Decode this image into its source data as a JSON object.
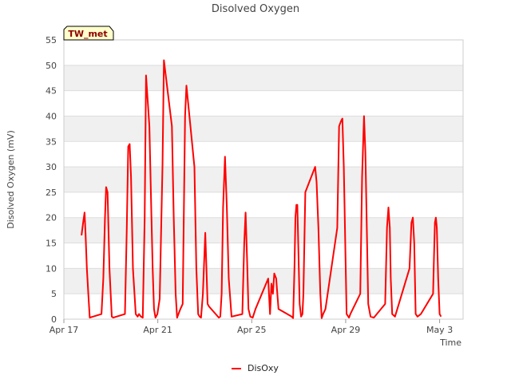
{
  "chart_data": {
    "type": "line",
    "title": "Disolved Oxygen",
    "xlabel": "Time",
    "ylabel": "Disolved Oxygen (mV)",
    "station_label": "TW_met",
    "xlim": [
      0,
      17
    ],
    "ylim": [
      0,
      55
    ],
    "x_unit": "days since Apr 17",
    "x_ticks": [
      {
        "value": 0,
        "label": "Apr 17"
      },
      {
        "value": 4,
        "label": "Apr 21"
      },
      {
        "value": 8,
        "label": "Apr 25"
      },
      {
        "value": 12,
        "label": "Apr 29"
      },
      {
        "value": 16,
        "label": "May 3"
      }
    ],
    "y_ticks": [
      0,
      5,
      10,
      15,
      20,
      25,
      30,
      35,
      40,
      45,
      50,
      55
    ],
    "colors": {
      "series": "#ff0000",
      "band": "#f0f0f0",
      "grid": "#dddddd",
      "badge_fill": "#ffffcc"
    },
    "series": [
      {
        "name": "DisOxy",
        "x": [
          0.75,
          0.82,
          0.88,
          0.92,
          0.98,
          1.04,
          1.1,
          1.6,
          1.68,
          1.75,
          1.8,
          1.86,
          1.94,
          2.04,
          2.1,
          2.6,
          2.68,
          2.74,
          2.8,
          2.86,
          2.94,
          3.06,
          3.14,
          3.2,
          3.28,
          3.36,
          3.44,
          3.5,
          3.64,
          3.72,
          3.78,
          3.84,
          3.9,
          3.98,
          4.08,
          4.2,
          4.26,
          4.6,
          4.68,
          4.76,
          4.82,
          4.88,
          4.96,
          5.06,
          5.16,
          5.22,
          5.56,
          5.64,
          5.72,
          5.78,
          5.84,
          5.92,
          6.02,
          6.12,
          6.18,
          6.6,
          6.66,
          6.72,
          6.78,
          6.86,
          6.94,
          7.02,
          7.14,
          7.6,
          7.68,
          7.74,
          7.8,
          7.86,
          7.94,
          8.04,
          8.16,
          8.7,
          8.78,
          8.84,
          8.9,
          8.96,
          9.04,
          9.14,
          9.7,
          9.76,
          9.82,
          9.86,
          9.9,
          9.94,
          9.98,
          10.04,
          10.1,
          10.16,
          10.2,
          10.28,
          10.7,
          10.76,
          10.84,
          10.92,
          10.98,
          11.04,
          11.14,
          11.64,
          11.72,
          11.8,
          11.86,
          11.92,
          11.98,
          12.04,
          12.14,
          12.2,
          12.62,
          12.7,
          12.78,
          12.84,
          12.9,
          12.96,
          13.06,
          13.2,
          13.68,
          13.76,
          13.82,
          13.88,
          13.92,
          13.98,
          14.1,
          14.2,
          14.72,
          14.8,
          14.86,
          14.92,
          14.98,
          15.06,
          15.2,
          15.72,
          15.76,
          15.8,
          15.84,
          15.88,
          15.94,
          16.0,
          16.06
        ],
        "y": [
          16.5,
          19,
          21,
          17,
          10,
          5,
          0.3,
          1,
          8,
          20,
          26,
          25,
          10,
          0.5,
          0.3,
          1,
          18,
          34,
          34.5,
          28,
          10,
          1,
          0.5,
          1,
          0.5,
          0.3,
          20,
          48,
          38,
          22,
          10,
          2,
          0.3,
          1,
          4,
          30,
          51,
          38,
          20,
          5,
          0.3,
          1,
          2,
          3,
          40,
          46,
          30,
          10,
          1,
          0.5,
          0.3,
          5,
          17,
          3,
          2.5,
          0.3,
          0.5,
          5,
          22,
          32,
          22,
          8,
          0.5,
          1,
          15,
          21,
          12,
          2,
          0.5,
          0.3,
          2,
          8,
          1,
          7,
          5,
          9,
          8,
          2,
          0.5,
          0.2,
          10,
          20,
          22.5,
          22.5,
          15,
          3,
          0.5,
          1,
          5,
          25,
          30,
          27,
          18,
          5,
          0.2,
          1,
          2,
          18,
          38,
          39,
          39.5,
          30,
          15,
          1,
          0.3,
          1,
          5,
          28,
          40,
          33,
          18,
          3,
          0.5,
          0.3,
          3,
          18,
          22,
          18,
          8,
          1,
          0.5,
          2,
          10,
          19,
          20,
          15,
          1,
          0.5,
          1,
          5,
          12,
          19,
          20,
          18,
          8,
          1,
          0.5
        ]
      }
    ],
    "legend": {
      "position": "bottom-center",
      "entries": [
        "DisOxy"
      ]
    }
  }
}
